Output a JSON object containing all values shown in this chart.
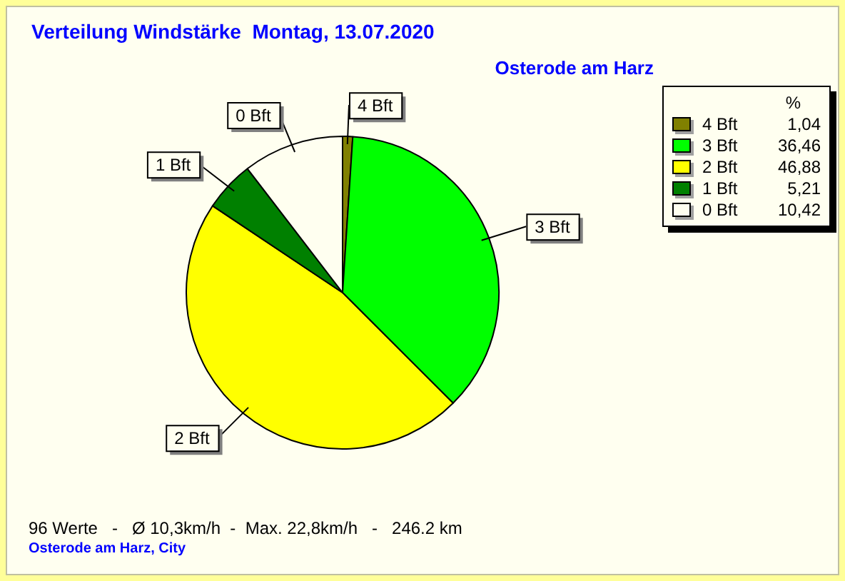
{
  "chart_data": {
    "type": "pie",
    "title": "Verteilung Windstärke  Montag, 13.07.2020",
    "subtitle": "Osterode am Harz",
    "legend_title": "%",
    "legend": "top right",
    "categories": [
      "4 Bft",
      "3 Bft",
      "2 Bft",
      "1 Bft",
      "0 Bft"
    ],
    "values": [
      1.04,
      36.46,
      46.88,
      5.21,
      10.42
    ],
    "value_labels": [
      "1,04",
      "36,46",
      "46,88",
      "5,21",
      "10,42"
    ],
    "colors": [
      "#808000",
      "#00ff00",
      "#ffff00",
      "#008000",
      "#fffff0"
    ],
    "annotations": [
      "96 Werte   -   Ø 10,3km/h  -  Max. 22,8km/h   -   246.2 km",
      "Osterode am Harz, City"
    ]
  }
}
